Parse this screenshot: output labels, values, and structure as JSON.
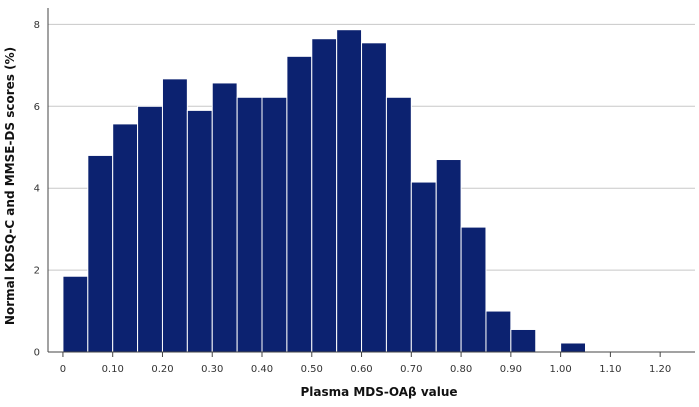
{
  "chart_data": {
    "type": "bar",
    "subtype": "histogram",
    "title": "",
    "xlabel": "Plasma MDS-OAβ value",
    "ylabel": "Normal KDSQ-C and MMSE-DS scores (%)",
    "xlim": [
      -0.03,
      1.27
    ],
    "ylim": [
      0,
      8.4
    ],
    "bin_width": 0.05,
    "bin_starts": [
      0.0,
      0.05,
      0.1,
      0.15,
      0.2,
      0.25,
      0.3,
      0.35,
      0.4,
      0.45,
      0.5,
      0.55,
      0.6,
      0.65,
      0.7,
      0.75,
      0.8,
      0.85,
      0.9,
      0.95,
      1.0
    ],
    "values": [
      1.85,
      4.8,
      5.57,
      6.0,
      6.67,
      5.9,
      6.57,
      6.22,
      6.22,
      7.22,
      7.65,
      7.87,
      7.55,
      6.22,
      4.15,
      4.7,
      3.05,
      1.0,
      0.55,
      0.0,
      0.22
    ],
    "x_ticks": [
      0.0,
      0.1,
      0.2,
      0.3,
      0.4,
      0.5,
      0.6,
      0.7,
      0.8,
      0.9,
      1.0,
      1.1,
      1.2
    ],
    "x_tick_labels": [
      "0",
      "0.10",
      "0.20",
      "0.30",
      "0.40",
      "0.50",
      "0.60",
      "0.70",
      "0.80",
      "0.90",
      "1.00",
      "1.10",
      "1.20"
    ],
    "y_ticks": [
      0,
      2,
      4,
      6,
      8
    ],
    "y_tick_labels": [
      "0",
      "2",
      "4",
      "6",
      "8"
    ],
    "grid": "horizontal",
    "legend": "none",
    "bar_color": "#0c2270",
    "bar_edge_color": "#ffffff",
    "grid_color": "#c8c8c8",
    "axis_color": "#444444"
  }
}
